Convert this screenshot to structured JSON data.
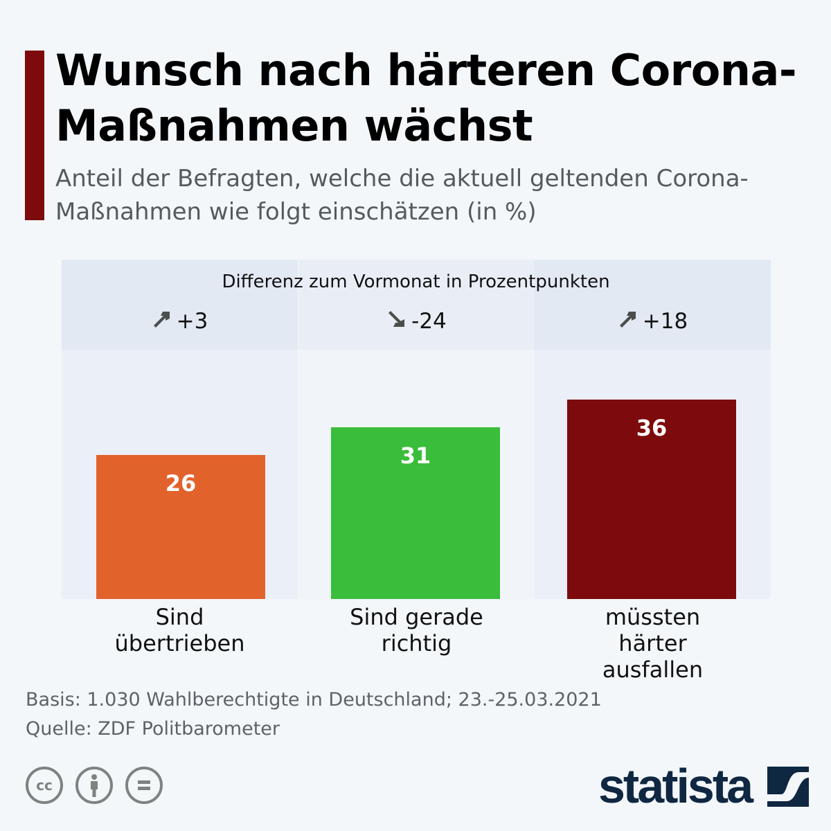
{
  "title": "Wunsch nach härteren Corona-Maßnahmen wächst",
  "subtitle": "Anteil der Befragten, welche die aktuell geltenden Corona-Maßnahmen wie folgt einschätzen (in %)",
  "chart_data": {
    "type": "bar",
    "categories": [
      "Sind übertrieben",
      "Sind gerade richtig",
      "müssten härter ausfallen"
    ],
    "values": [
      26,
      31,
      36
    ],
    "value_labels": [
      "26",
      "31",
      "36"
    ],
    "colors": [
      "#e2622c",
      "#3abd3a",
      "#7d0a0c"
    ],
    "unit": "%",
    "difference_title": "Differenz zum Vormonat in Prozentpunkten",
    "differences": [
      3,
      -24,
      18
    ],
    "difference_labels": [
      "+3",
      "-24",
      "+18"
    ]
  },
  "footer": {
    "basis": "Basis: 1.030 Wahlberechtigte in Deutschland; 23.-25.03.2021",
    "source": "Quelle: ZDF Politbarometer"
  },
  "license": {
    "cc": "cc"
  },
  "brand": "statista"
}
